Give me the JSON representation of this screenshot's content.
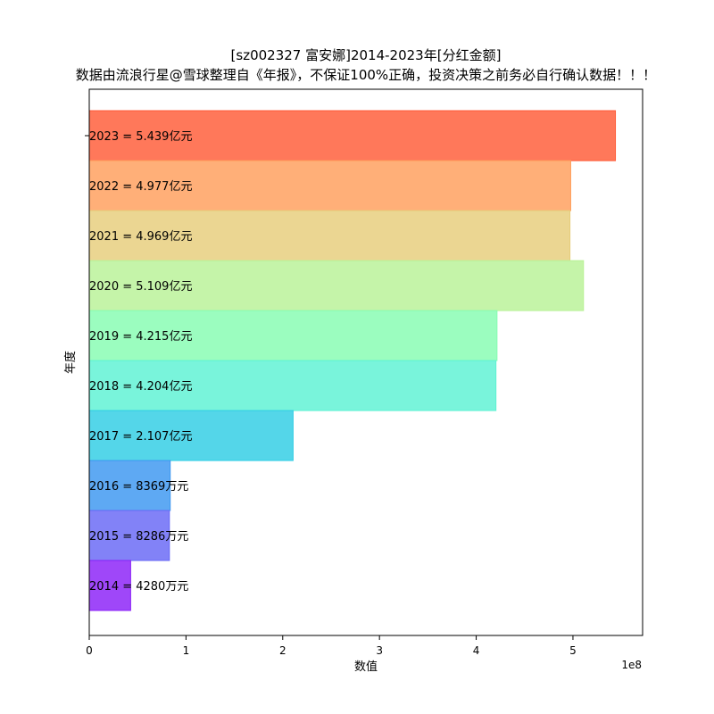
{
  "chart_data": {
    "type": "bar",
    "orientation": "horizontal",
    "title": "[sz002327 富安娜]2014-2023年[分红金额]",
    "subtitle": "数据由流浪行星@雪球整理自《年报》，不保证100%正确，投资决策之前务必自行确认数据！！！",
    "xlabel": "数值",
    "ylabel": "年度",
    "x_offset_label": "1e8",
    "xlim": [
      0,
      5.72
    ],
    "x_unit_scale": 100000000,
    "xticks": [
      "0",
      "1",
      "2",
      "3",
      "4",
      "5"
    ],
    "grid": false,
    "categories": [
      "2023",
      "2022",
      "2021",
      "2020",
      "2019",
      "2018",
      "2017",
      "2016",
      "2015",
      "2014"
    ],
    "values": [
      5.439,
      4.977,
      4.969,
      5.109,
      4.215,
      4.204,
      2.107,
      0.8369,
      0.8286,
      0.428
    ],
    "bar_labels": [
      "2023 = 5.439亿元",
      "2022 = 4.977亿元",
      "2021 = 4.969亿元",
      "2020 = 5.109亿元",
      "2019 = 4.215亿元",
      "2018 = 4.204亿元",
      "2017 = 2.107亿元",
      "2016 = 8369万元",
      "2015 = 8286万元",
      "2014 = 4280万元"
    ],
    "colors": [
      "#ff5a36",
      "#ff9e5a",
      "#e6cd7a",
      "#b8f296",
      "#85fcb1",
      "#5cf2d3",
      "#2ecde4",
      "#3b96f0",
      "#6667f5",
      "#8a1ff8"
    ]
  }
}
